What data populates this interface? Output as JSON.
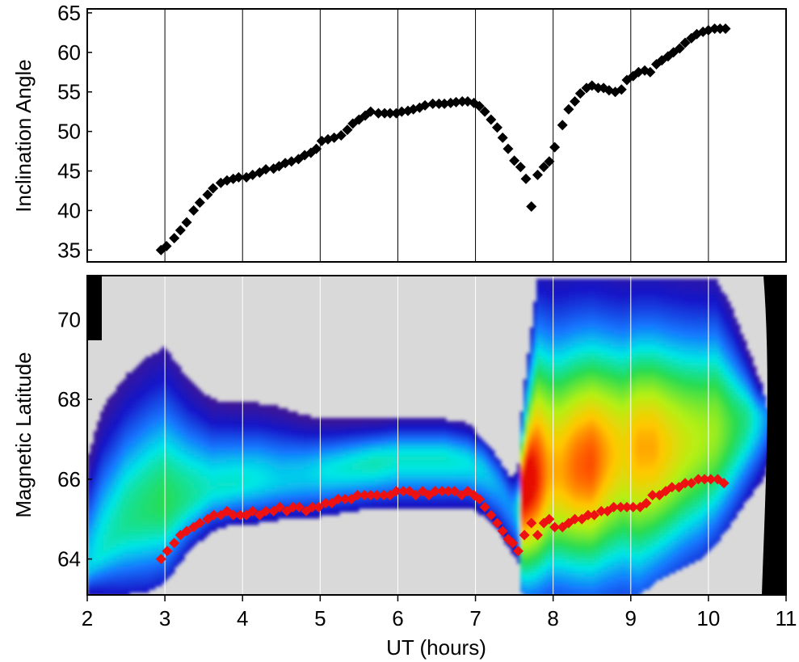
{
  "chart_data": [
    {
      "type": "scatter",
      "ylabel": "Inclination Angle",
      "xlim": [
        2,
        11
      ],
      "ylim": [
        33.5,
        65.5
      ],
      "xticks": [
        2,
        3,
        4,
        5,
        6,
        7,
        8,
        9,
        10,
        11
      ],
      "yticks": [
        35,
        40,
        45,
        50,
        55,
        60,
        65
      ],
      "grid": "vertical",
      "marker": "diamond",
      "color": "#000000",
      "x": [
        2.95,
        3.02,
        3.12,
        3.2,
        3.28,
        3.37,
        3.45,
        3.55,
        3.62,
        3.72,
        3.8,
        3.88,
        3.95,
        4.05,
        4.13,
        4.22,
        4.3,
        4.4,
        4.47,
        4.55,
        4.63,
        4.72,
        4.8,
        4.88,
        4.95,
        5.02,
        5.1,
        5.18,
        5.27,
        5.35,
        5.42,
        5.5,
        5.58,
        5.65,
        5.75,
        5.83,
        5.9,
        5.98,
        6.05,
        6.13,
        6.2,
        6.28,
        6.35,
        6.45,
        6.53,
        6.6,
        6.68,
        6.75,
        6.83,
        6.9,
        6.98,
        7.05,
        7.12,
        7.2,
        7.28,
        7.35,
        7.42,
        7.5,
        7.58,
        7.65,
        7.72,
        7.8,
        7.88,
        7.95,
        8.02,
        8.12,
        8.2,
        8.28,
        8.35,
        8.43,
        8.5,
        8.58,
        8.65,
        8.72,
        8.8,
        8.88,
        8.95,
        9.03,
        9.1,
        9.18,
        9.25,
        9.33,
        9.4,
        9.48,
        9.55,
        9.63,
        9.7,
        9.78,
        9.85,
        9.93,
        10.0,
        10.08,
        10.15,
        10.22
      ],
      "y": [
        35.0,
        35.5,
        36.5,
        37.5,
        38.5,
        40.0,
        41.0,
        42.0,
        42.8,
        43.5,
        43.8,
        44.0,
        44.2,
        44.2,
        44.5,
        44.8,
        45.2,
        45.3,
        45.6,
        46.0,
        46.2,
        46.5,
        47.0,
        47.3,
        47.8,
        48.8,
        49.0,
        49.2,
        49.5,
        50.2,
        51.0,
        51.5,
        52.0,
        52.5,
        52.3,
        52.3,
        52.3,
        52.3,
        52.5,
        52.6,
        52.8,
        53.0,
        53.3,
        53.5,
        53.5,
        53.5,
        53.6,
        53.7,
        53.8,
        53.8,
        53.6,
        53.2,
        52.5,
        51.5,
        50.5,
        49.2,
        47.8,
        46.3,
        45.5,
        44.0,
        40.5,
        44.5,
        45.5,
        46.2,
        48.0,
        50.8,
        52.8,
        53.8,
        54.8,
        55.5,
        55.8,
        55.5,
        55.5,
        55.2,
        55.0,
        55.3,
        56.5,
        57.0,
        57.5,
        57.7,
        57.5,
        58.5,
        59.0,
        59.5,
        60.0,
        60.5,
        61.2,
        61.8,
        62.3,
        62.6,
        62.8,
        63.0,
        63.0,
        63.0
      ]
    },
    {
      "type": "heatmap",
      "xlabel": "UT (hours)",
      "ylabel": "Magnetic Latitude",
      "xlim": [
        2,
        11
      ],
      "ylim": [
        63.1,
        71.1
      ],
      "xticks": [
        2,
        3,
        4,
        5,
        6,
        7,
        8,
        9,
        10,
        11
      ],
      "yticks": [
        64,
        66,
        68,
        70
      ],
      "grid": "vertical",
      "colorscale": "rainbow (violet-blue-cyan-green-yellow-red)",
      "background": "#d9d9d9",
      "profile": {
        "x": [
          2.0,
          2.2,
          2.5,
          2.8,
          3.0,
          3.3,
          3.6,
          3.9,
          4.2,
          4.5,
          4.8,
          5.1,
          5.4,
          5.7,
          6.0,
          6.3,
          6.6,
          6.9,
          7.1,
          7.3,
          7.45,
          7.55,
          7.6,
          7.7,
          7.8,
          7.95,
          8.1,
          8.3,
          8.5,
          8.7,
          8.9,
          9.1,
          9.3,
          9.5,
          9.7,
          9.9,
          10.1,
          10.3,
          10.5,
          10.7,
          10.85
        ],
        "top": [
          66.5,
          67.8,
          68.6,
          69.1,
          69.3,
          68.5,
          68.0,
          67.9,
          67.9,
          67.8,
          67.6,
          67.5,
          67.5,
          67.5,
          67.5,
          67.5,
          67.5,
          67.4,
          67.0,
          66.5,
          66.0,
          66.2,
          67.8,
          69.5,
          71.0,
          71.0,
          71.0,
          71.0,
          71.0,
          71.0,
          71.0,
          71.0,
          71.0,
          71.0,
          71.0,
          71.0,
          71.0,
          70.3,
          69.3,
          68.3,
          67.0
        ],
        "bottom": [
          63.1,
          63.1,
          63.1,
          63.2,
          63.4,
          64.2,
          64.7,
          64.9,
          64.9,
          65.0,
          65.0,
          65.1,
          65.2,
          65.3,
          65.3,
          65.3,
          65.3,
          65.3,
          65.1,
          64.7,
          64.2,
          64.0,
          63.1,
          63.1,
          63.1,
          63.1,
          63.1,
          63.1,
          63.1,
          63.1,
          63.1,
          63.1,
          63.4,
          63.6,
          63.8,
          64.0,
          64.4,
          64.9,
          65.5,
          66.0,
          66.8
        ],
        "peak": [
          63.8,
          64.3,
          65.0,
          65.3,
          65.4,
          65.6,
          65.8,
          65.9,
          66.0,
          66.0,
          66.1,
          66.2,
          66.3,
          66.4,
          66.5,
          66.5,
          66.5,
          66.4,
          66.2,
          65.8,
          65.3,
          65.2,
          65.8,
          66.0,
          66.0,
          66.2,
          66.2,
          66.3,
          66.4,
          66.6,
          66.7,
          66.8,
          66.8,
          66.8,
          66.9,
          67.0,
          67.2,
          67.3,
          67.5,
          67.5,
          67.5
        ],
        "intensity": [
          0.45,
          0.5,
          0.55,
          0.58,
          0.6,
          0.55,
          0.5,
          0.5,
          0.48,
          0.45,
          0.45,
          0.48,
          0.5,
          0.52,
          0.5,
          0.5,
          0.5,
          0.48,
          0.45,
          0.4,
          0.38,
          0.45,
          1.0,
          1.0,
          0.95,
          0.85,
          0.85,
          0.9,
          0.92,
          0.85,
          0.8,
          0.85,
          0.85,
          0.8,
          0.75,
          0.72,
          0.7,
          0.62,
          0.55,
          0.42,
          0.3
        ]
      },
      "overlay_points": {
        "color": "#ee1111",
        "marker": "diamond",
        "x": [
          2.95,
          3.03,
          3.12,
          3.2,
          3.28,
          3.37,
          3.45,
          3.55,
          3.63,
          3.72,
          3.8,
          3.88,
          3.97,
          4.05,
          4.13,
          4.22,
          4.3,
          4.4,
          4.48,
          4.57,
          4.65,
          4.73,
          4.82,
          4.9,
          4.98,
          5.07,
          5.15,
          5.23,
          5.32,
          5.4,
          5.48,
          5.57,
          5.65,
          5.73,
          5.82,
          5.9,
          5.98,
          6.07,
          6.15,
          6.23,
          6.32,
          6.4,
          6.48,
          6.57,
          6.65,
          6.73,
          6.82,
          6.9,
          6.98,
          7.05,
          7.12,
          7.2,
          7.28,
          7.35,
          7.42,
          7.48,
          7.55,
          7.63,
          7.72,
          7.8,
          7.88,
          7.95,
          8.02,
          8.12,
          8.2,
          8.28,
          8.37,
          8.45,
          8.53,
          8.62,
          8.7,
          8.78,
          8.87,
          8.95,
          9.03,
          9.12,
          9.2,
          9.28,
          9.37,
          9.45,
          9.53,
          9.62,
          9.7,
          9.78,
          9.87,
          9.95,
          10.03,
          10.12,
          10.2
        ],
        "y": [
          64.0,
          64.2,
          64.4,
          64.6,
          64.7,
          64.8,
          64.9,
          65.0,
          65.1,
          65.1,
          65.2,
          65.1,
          65.1,
          65.1,
          65.2,
          65.1,
          65.2,
          65.2,
          65.3,
          65.2,
          65.3,
          65.3,
          65.2,
          65.3,
          65.3,
          65.4,
          65.4,
          65.5,
          65.5,
          65.5,
          65.6,
          65.6,
          65.6,
          65.6,
          65.6,
          65.6,
          65.7,
          65.7,
          65.7,
          65.6,
          65.7,
          65.6,
          65.7,
          65.7,
          65.7,
          65.7,
          65.6,
          65.7,
          65.6,
          65.5,
          65.3,
          65.1,
          64.9,
          64.7,
          64.5,
          64.4,
          64.2,
          64.6,
          64.9,
          64.6,
          64.9,
          65.0,
          64.8,
          64.8,
          64.9,
          65.0,
          65.0,
          65.1,
          65.1,
          65.2,
          65.2,
          65.3,
          65.3,
          65.3,
          65.3,
          65.3,
          65.4,
          65.6,
          65.6,
          65.7,
          65.8,
          65.8,
          65.9,
          65.9,
          66.0,
          66.0,
          66.0,
          66.0,
          65.9
        ]
      }
    }
  ]
}
